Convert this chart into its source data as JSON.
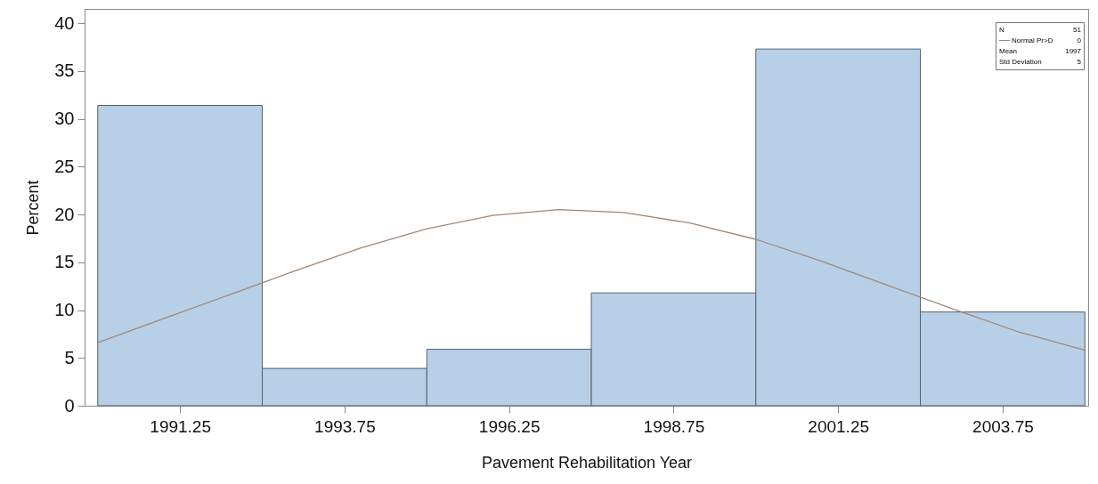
{
  "chart_data": {
    "type": "histogram",
    "xlabel": "Pavement Rehabilitation Year",
    "ylabel": "Percent",
    "bins": [
      1990,
      1992.5,
      1995,
      1997.5,
      2000,
      2002.5,
      2005
    ],
    "values": [
      31.4,
      3.9,
      5.9,
      11.8,
      37.3,
      9.8
    ],
    "color": "#b8cfe8",
    "series": [
      {
        "name": "Normal Pr>D",
        "type": "line",
        "color": "#a08878",
        "x": [
          1990,
          1991,
          1992,
          1993,
          1994,
          1995,
          1996,
          1997,
          1998,
          1999,
          2000,
          2001,
          2002,
          2003,
          2004,
          2005
        ],
        "values": [
          6.6,
          9.1,
          11.6,
          14.1,
          16.5,
          18.5,
          19.9,
          20.5,
          20.2,
          19.1,
          17.4,
          15.1,
          12.6,
          10.1,
          7.7,
          5.8
        ]
      }
    ],
    "xlim": [
      1989.8,
      2005.05
    ],
    "xticks": [
      1991.25,
      1993.75,
      1996.25,
      1998.75,
      2001.25,
      2003.75
    ],
    "ylim": [
      0,
      41.5
    ],
    "yticks": [
      0,
      5,
      10,
      15,
      20,
      25,
      30,
      35,
      40
    ],
    "annotations": [
      "N 51",
      "0",
      "Mean 1997",
      "Std Deviation 5"
    ],
    "legend": "top right",
    "grid": false
  }
}
